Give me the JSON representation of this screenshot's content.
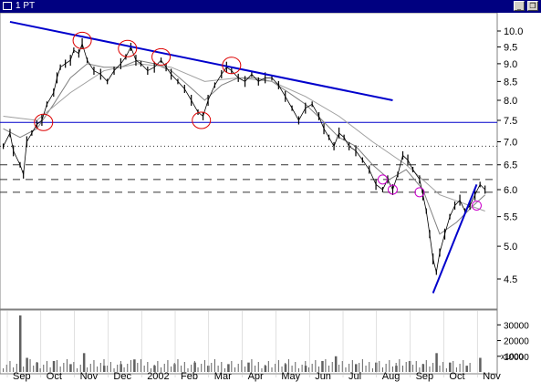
{
  "window": {
    "title": "1 PT",
    "buttons": [
      {
        "name": "minimize-button",
        "glyph": "_"
      },
      {
        "name": "restore-button",
        "glyph": "❐"
      }
    ]
  },
  "chart_data": {
    "type": "line",
    "price_axis": {
      "ticks": [
        "10.0",
        "9.5",
        "9.0",
        "8.5",
        "8.0",
        "7.5",
        "7.0",
        "6.5",
        "6.0",
        "5.5",
        "5.0",
        "4.5"
      ],
      "values": [
        10.0,
        9.5,
        9.0,
        8.5,
        8.0,
        7.5,
        7.0,
        6.5,
        6.0,
        5.5,
        5.0,
        4.5
      ]
    },
    "volume_axis": {
      "ticks": [
        "30000",
        "20000",
        "10000"
      ],
      "values": [
        30000,
        20000,
        10000
      ],
      "multiplier_label": "x1000"
    },
    "months": [
      "Sep",
      "Oct",
      "Nov",
      "Dec",
      "2002",
      "Feb",
      "Mar",
      "Apr",
      "May",
      "Jun",
      "Jul",
      "Aug",
      "Sep",
      "Oct",
      "Nov"
    ],
    "colors": {
      "price": "#000000",
      "moving_average_fast": "#808080",
      "moving_average_slow": "#a0a0a0",
      "trendline": "#0000cc",
      "support": "#0000cc",
      "dashed_levels": "#333333",
      "highlights_red": "#dd0000",
      "highlights_magenta": "#cc00cc",
      "channel": "#999900",
      "volume": "#606060"
    },
    "horizontal_levels": [
      {
        "value": 7.45,
        "style": "solid"
      },
      {
        "value": 6.9,
        "style": "dotted"
      },
      {
        "value": 6.5,
        "style": "dashed"
      },
      {
        "value": 6.2,
        "style": "dashed"
      },
      {
        "value": 5.95,
        "style": "dashed"
      }
    ],
    "trendlines": [
      {
        "from": {
          "month": -0.3,
          "value": 10.3
        },
        "to": {
          "month": 11.1,
          "value": 8.0
        }
      },
      {
        "from": {
          "month": 12.3,
          "value": 4.3
        },
        "to": {
          "month": 13.6,
          "value": 6.1
        }
      }
    ],
    "circled_points": [
      {
        "month": 0.7,
        "value": 7.45,
        "color": "red"
      },
      {
        "month": 1.85,
        "value": 9.7,
        "color": "red"
      },
      {
        "month": 3.2,
        "value": 9.45,
        "color": "red"
      },
      {
        "month": 4.2,
        "value": 9.2,
        "color": "red"
      },
      {
        "month": 5.4,
        "value": 7.5,
        "color": "red"
      },
      {
        "month": 6.3,
        "value": 8.95,
        "color": "red"
      },
      {
        "month": 10.8,
        "value": 6.2,
        "color": "magenta"
      },
      {
        "month": 11.1,
        "value": 6.0,
        "color": "magenta"
      },
      {
        "month": 11.9,
        "value": 5.95,
        "color": "magenta"
      },
      {
        "month": 13.6,
        "value": 5.7,
        "color": "magenta"
      }
    ],
    "price_series": [
      [
        -0.5,
        6.9
      ],
      [
        -0.3,
        7.2
      ],
      [
        -0.2,
        6.8
      ],
      [
        0.0,
        6.5
      ],
      [
        0.1,
        6.3
      ],
      [
        0.2,
        7.0
      ],
      [
        0.35,
        7.2
      ],
      [
        0.5,
        7.4
      ],
      [
        0.65,
        7.5
      ],
      [
        0.8,
        7.9
      ],
      [
        1.0,
        8.2
      ],
      [
        1.1,
        8.6
      ],
      [
        1.2,
        8.9
      ],
      [
        1.35,
        9.0
      ],
      [
        1.5,
        9.1
      ],
      [
        1.6,
        9.4
      ],
      [
        1.75,
        9.3
      ],
      [
        1.85,
        9.6
      ],
      [
        2.0,
        9.1
      ],
      [
        2.2,
        8.8
      ],
      [
        2.4,
        8.7
      ],
      [
        2.6,
        8.5
      ],
      [
        2.8,
        8.8
      ],
      [
        3.0,
        9.0
      ],
      [
        3.15,
        9.2
      ],
      [
        3.3,
        9.5
      ],
      [
        3.45,
        9.1
      ],
      [
        3.6,
        9.0
      ],
      [
        3.8,
        8.8
      ],
      [
        4.0,
        8.9
      ],
      [
        4.2,
        9.1
      ],
      [
        4.35,
        8.9
      ],
      [
        4.5,
        8.7
      ],
      [
        4.7,
        8.5
      ],
      [
        4.9,
        8.3
      ],
      [
        5.1,
        8.0
      ],
      [
        5.3,
        7.7
      ],
      [
        5.45,
        7.6
      ],
      [
        5.6,
        8.0
      ],
      [
        5.8,
        8.4
      ],
      [
        6.0,
        8.7
      ],
      [
        6.15,
        8.9
      ],
      [
        6.3,
        8.8
      ],
      [
        6.5,
        8.6
      ],
      [
        6.7,
        8.5
      ],
      [
        6.9,
        8.7
      ],
      [
        7.1,
        8.5
      ],
      [
        7.3,
        8.6
      ],
      [
        7.5,
        8.6
      ],
      [
        7.7,
        8.4
      ],
      [
        7.9,
        8.1
      ],
      [
        8.1,
        7.8
      ],
      [
        8.3,
        7.5
      ],
      [
        8.5,
        7.8
      ],
      [
        8.7,
        7.9
      ],
      [
        8.9,
        7.6
      ],
      [
        9.05,
        7.3
      ],
      [
        9.2,
        7.1
      ],
      [
        9.35,
        6.9
      ],
      [
        9.5,
        7.2
      ],
      [
        9.65,
        7.1
      ],
      [
        9.8,
        6.9
      ],
      [
        10.0,
        6.8
      ],
      [
        10.2,
        6.6
      ],
      [
        10.4,
        6.4
      ],
      [
        10.6,
        6.1
      ],
      [
        10.8,
        6.0
      ],
      [
        10.95,
        6.2
      ],
      [
        11.1,
        6.0
      ],
      [
        11.25,
        6.3
      ],
      [
        11.4,
        6.7
      ],
      [
        11.55,
        6.6
      ],
      [
        11.7,
        6.4
      ],
      [
        11.9,
        6.2
      ],
      [
        12.0,
        5.9
      ],
      [
        12.1,
        5.6
      ],
      [
        12.2,
        5.2
      ],
      [
        12.3,
        4.8
      ],
      [
        12.4,
        4.6
      ],
      [
        12.5,
        4.9
      ],
      [
        12.65,
        5.2
      ],
      [
        12.8,
        5.5
      ],
      [
        12.95,
        5.7
      ],
      [
        13.1,
        5.8
      ],
      [
        13.25,
        5.6
      ],
      [
        13.4,
        5.7
      ],
      [
        13.55,
        5.9
      ],
      [
        13.7,
        6.1
      ],
      [
        13.85,
        6.0
      ]
    ],
    "ma_fast": [
      [
        -0.5,
        7.3
      ],
      [
        0.0,
        7.1
      ],
      [
        0.5,
        7.3
      ],
      [
        1.0,
        7.9
      ],
      [
        1.5,
        8.6
      ],
      [
        2.0,
        9.0
      ],
      [
        2.5,
        8.9
      ],
      [
        3.0,
        8.9
      ],
      [
        3.5,
        9.1
      ],
      [
        4.0,
        9.0
      ],
      [
        4.5,
        8.8
      ],
      [
        5.0,
        8.4
      ],
      [
        5.5,
        8.0
      ],
      [
        6.0,
        8.4
      ],
      [
        6.5,
        8.6
      ],
      [
        7.0,
        8.6
      ],
      [
        7.5,
        8.5
      ],
      [
        8.0,
        8.2
      ],
      [
        8.5,
        7.9
      ],
      [
        9.0,
        7.5
      ],
      [
        9.5,
        7.1
      ],
      [
        10.0,
        6.9
      ],
      [
        10.5,
        6.5
      ],
      [
        11.0,
        6.2
      ],
      [
        11.5,
        6.4
      ],
      [
        12.0,
        6.0
      ],
      [
        12.5,
        5.2
      ],
      [
        13.0,
        5.4
      ],
      [
        13.5,
        5.7
      ],
      [
        13.85,
        5.9
      ]
    ],
    "ma_slow": [
      [
        -0.5,
        7.6
      ],
      [
        0.5,
        7.5
      ],
      [
        1.5,
        8.2
      ],
      [
        2.5,
        8.8
      ],
      [
        3.5,
        9.0
      ],
      [
        4.5,
        8.9
      ],
      [
        5.5,
        8.5
      ],
      [
        6.5,
        8.6
      ],
      [
        7.5,
        8.5
      ],
      [
        8.5,
        8.1
      ],
      [
        9.5,
        7.6
      ],
      [
        10.5,
        7.0
      ],
      [
        11.5,
        6.5
      ],
      [
        12.5,
        5.9
      ],
      [
        13.85,
        5.6
      ]
    ],
    "volume": [
      [
        0.0,
        36000
      ],
      [
        0.2,
        9000
      ],
      [
        0.5,
        6000
      ],
      [
        1.0,
        7000
      ],
      [
        1.5,
        5000
      ],
      [
        1.9,
        12000
      ],
      [
        2.5,
        4000
      ],
      [
        3.0,
        5000
      ],
      [
        3.4,
        8000
      ],
      [
        4.0,
        4000
      ],
      [
        4.6,
        5000
      ],
      [
        5.2,
        6000
      ],
      [
        5.6,
        4000
      ],
      [
        6.2,
        5000
      ],
      [
        6.8,
        6000
      ],
      [
        7.3,
        4000
      ],
      [
        7.9,
        5000
      ],
      [
        8.5,
        4000
      ],
      [
        9.0,
        7000
      ],
      [
        9.4,
        10000
      ],
      [
        10.0,
        5000
      ],
      [
        10.6,
        6000
      ],
      [
        11.2,
        4000
      ],
      [
        11.6,
        7000
      ],
      [
        12.0,
        5000
      ],
      [
        12.4,
        12000
      ],
      [
        12.8,
        6000
      ],
      [
        13.3,
        4000
      ],
      [
        13.7,
        9000
      ]
    ]
  }
}
